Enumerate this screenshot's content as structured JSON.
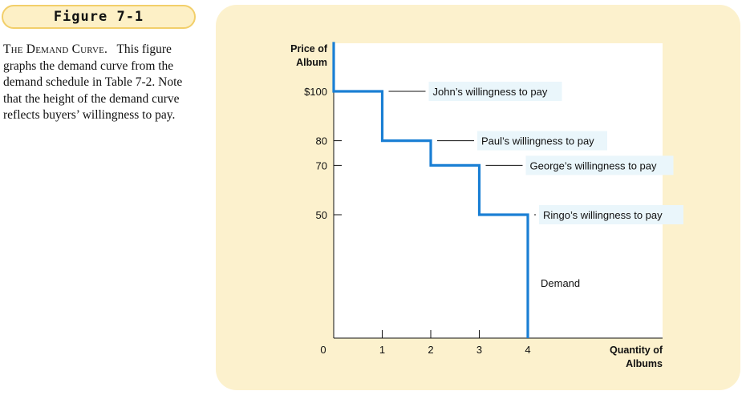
{
  "figure_label": "Figure 7-1",
  "caption": {
    "heading": "The Demand Curve.",
    "body": "This figure graphs the demand curve from the demand schedule in Table 7-2. Note that the height of the demand curve reflects buyers’ willingness to pay."
  },
  "colors": {
    "curve": "#1a7fd4",
    "panel": "#fcf1cd",
    "label_box": "#eaf6fb",
    "figure_label_border": "#f2cf6a"
  },
  "chart_data": {
    "type": "line",
    "step": true,
    "ylabel": "Price of\nAlbum",
    "xlabel": "Quantity of\nAlbums",
    "x_ticks": [
      "0",
      "1",
      "2",
      "3",
      "4"
    ],
    "y_ticks": [
      {
        "value": 100,
        "label": "$100"
      },
      {
        "value": 80,
        "label": "80"
      },
      {
        "value": 70,
        "label": "70"
      },
      {
        "value": 50,
        "label": "50"
      }
    ],
    "xlim": [
      0,
      6.2
    ],
    "ylim": [
      0,
      120
    ],
    "series": [
      {
        "name": "Demand",
        "points": [
          [
            0,
            120
          ],
          [
            0,
            100
          ],
          [
            1,
            100
          ],
          [
            1,
            80
          ],
          [
            2,
            80
          ],
          [
            2,
            70
          ],
          [
            3,
            70
          ],
          [
            3,
            50
          ],
          [
            4,
            50
          ],
          [
            4,
            0
          ]
        ]
      }
    ],
    "annotations": [
      {
        "text": "John’s willingness to pay",
        "x": 1,
        "y": 100
      },
      {
        "text": "Paul’s willingness to pay",
        "x": 2,
        "y": 80
      },
      {
        "text": "George’s willingness to pay",
        "x": 3,
        "y": 70
      },
      {
        "text": "Ringo’s willingness to pay",
        "x": 4,
        "y": 50
      }
    ],
    "curve_label": "Demand"
  }
}
